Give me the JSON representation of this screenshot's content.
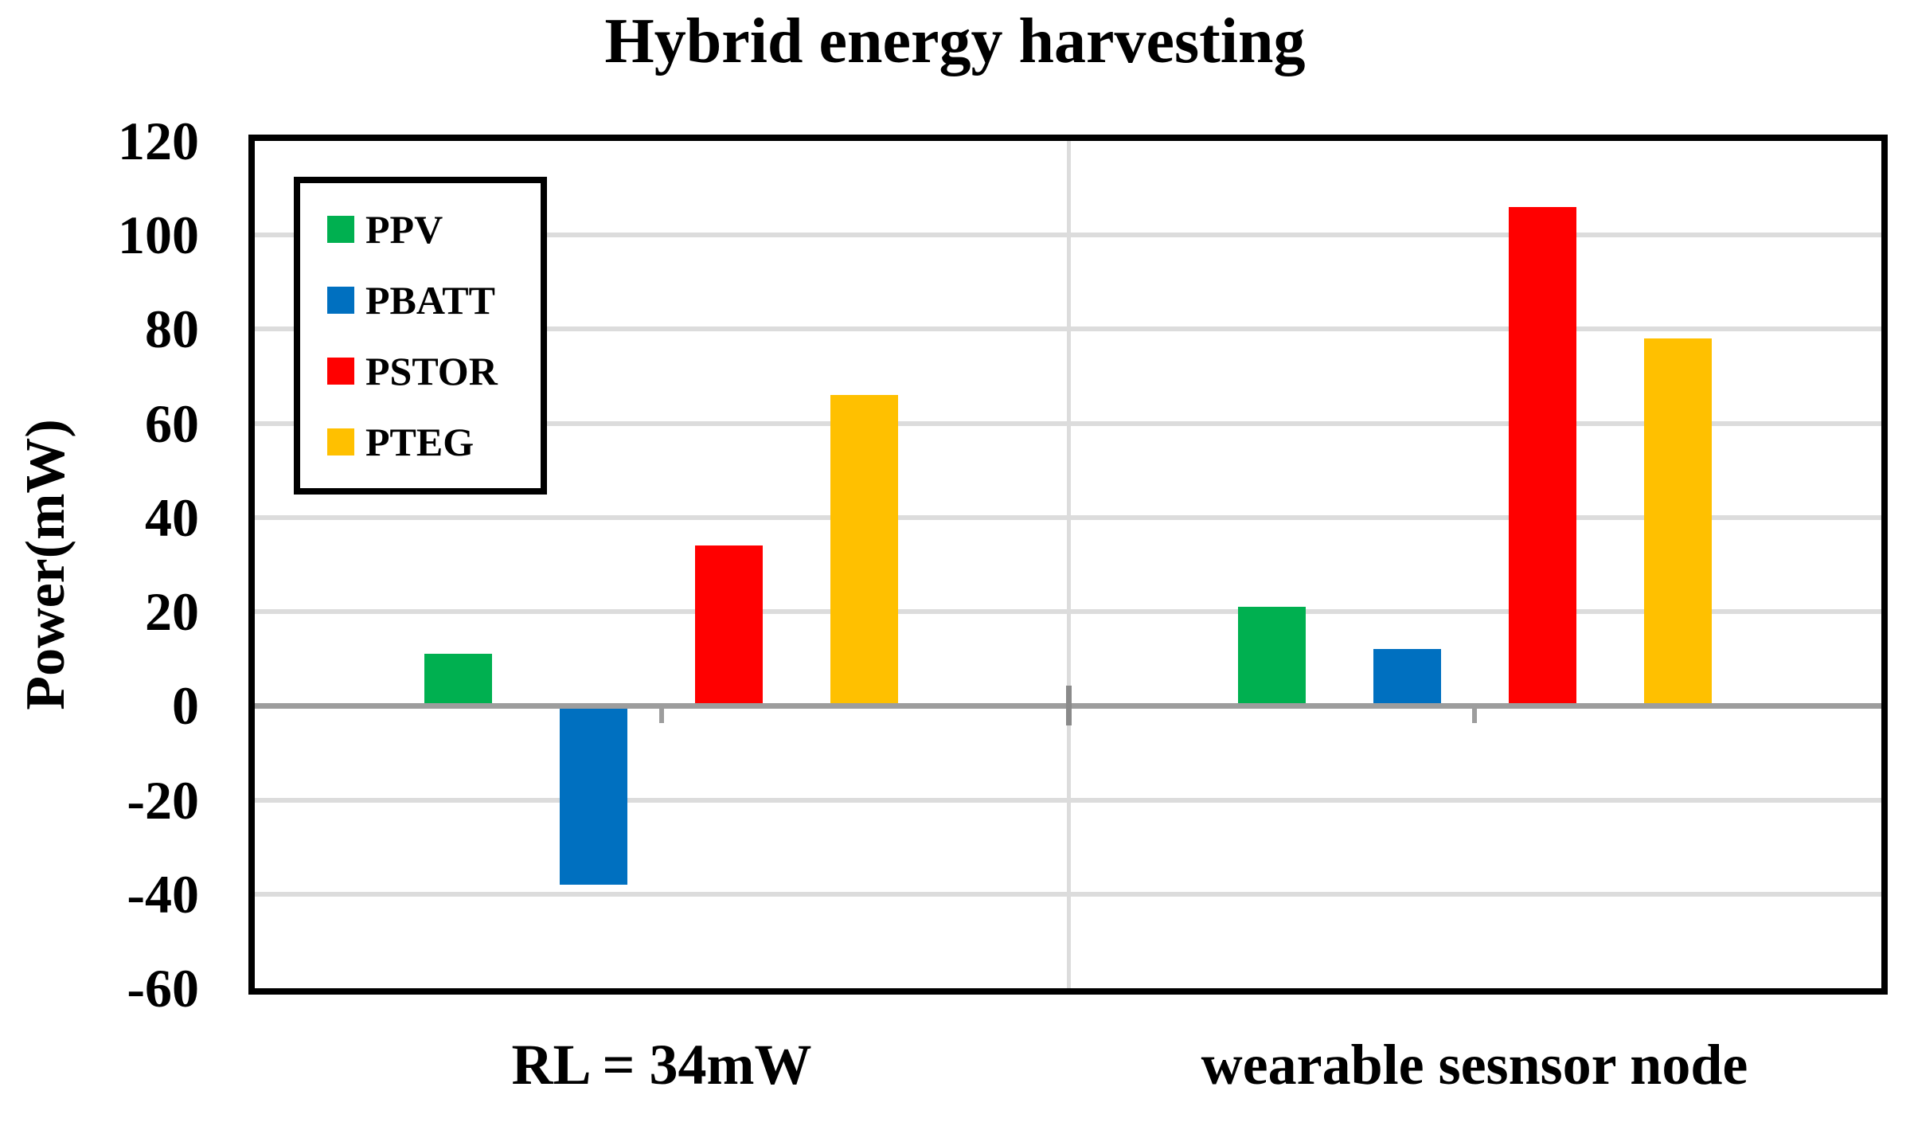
{
  "chart_data": {
    "type": "bar",
    "title": "Hybrid energy harvesting",
    "ylabel": "Power(mW)",
    "xlabel": "",
    "categories": [
      "RL = 34mW",
      "wearable sesnsor node"
    ],
    "series": [
      {
        "name": "PPV",
        "color": "#00B050",
        "values": [
          11,
          21
        ]
      },
      {
        "name": "PBATT",
        "color": "#0070C0",
        "values": [
          -38,
          12
        ]
      },
      {
        "name": "PSTOR",
        "color": "#FF0000",
        "values": [
          34,
          106
        ]
      },
      {
        "name": "PTEG",
        "color": "#FFC000",
        "values": [
          66,
          78
        ]
      }
    ],
    "ylim": [
      -60,
      120
    ],
    "ytick_step": 20,
    "yticks": [
      120,
      100,
      80,
      60,
      40,
      20,
      0,
      -20,
      -40,
      -60
    ],
    "grid": true,
    "legend_position": "top-left",
    "colors": {
      "gridline": "#DCDCDC",
      "axis_line": "#9D9D9D",
      "tick": "#8A8A8A",
      "plot_border": "#000000",
      "background": "#FFFFFF",
      "text": "#000000"
    }
  }
}
